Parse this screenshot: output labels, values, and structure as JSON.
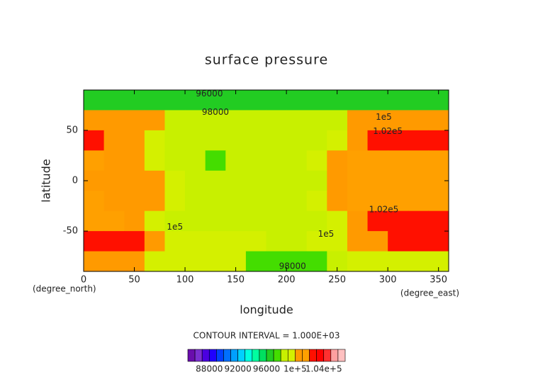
{
  "chart_data": {
    "type": "contour",
    "title": "surface pressure",
    "x_label": "longitude",
    "y_label": "latitude",
    "x_unit": "(degree_east)",
    "y_unit": "(degree_north)",
    "interval_note": "CONTOUR INTERVAL = 1.000E+03",
    "xlim": [
      0,
      360
    ],
    "ylim": [
      -90,
      90
    ],
    "xticks": [
      0,
      50,
      100,
      150,
      200,
      250,
      300,
      350
    ],
    "yticks": [
      -50,
      0,
      50
    ],
    "x": [
      10,
      30,
      50,
      70,
      90,
      110,
      130,
      150,
      170,
      190,
      210,
      230,
      250,
      270,
      290,
      310,
      330,
      350
    ],
    "y": [
      80,
      60,
      40,
      20,
      0,
      -20,
      -40,
      -60,
      -80
    ],
    "z": [
      [
        96500,
        96500,
        96500,
        96500,
        96500,
        96500,
        96500,
        96500,
        96300,
        96000,
        96000,
        96300,
        96500,
        96500,
        96500,
        96500,
        96500,
        96500
      ],
      [
        100500,
        100500,
        100500,
        100500,
        98800,
        98800,
        98800,
        98800,
        98800,
        98800,
        98800,
        98800,
        98800,
        100500,
        100500,
        100500,
        100500,
        100500
      ],
      [
        102500,
        100800,
        100500,
        99000,
        98800,
        98800,
        98800,
        98800,
        98800,
        98800,
        98800,
        98800,
        99500,
        100800,
        102500,
        102500,
        102500,
        102300
      ],
      [
        101000,
        100800,
        100800,
        99300,
        98800,
        98800,
        97500,
        98800,
        98800,
        98800,
        98800,
        99200,
        100500,
        101000,
        101000,
        101000,
        101000,
        101000
      ],
      [
        100800,
        100500,
        100800,
        100500,
        99000,
        98800,
        98800,
        98800,
        98800,
        98800,
        98800,
        98800,
        100500,
        101000,
        101000,
        101000,
        101000,
        101000
      ],
      [
        101000,
        100800,
        100800,
        100800,
        99500,
        98800,
        98800,
        98800,
        98800,
        98800,
        98800,
        99500,
        100600,
        101200,
        101200,
        101200,
        101200,
        101200
      ],
      [
        101500,
        101000,
        100500,
        99500,
        98900,
        98900,
        98900,
        98900,
        98900,
        98900,
        98900,
        98900,
        99500,
        100800,
        102300,
        102800,
        102800,
        102800
      ],
      [
        102800,
        102800,
        102300,
        100500,
        99200,
        99000,
        99000,
        99000,
        99000,
        98500,
        98500,
        99000,
        99800,
        100800,
        100800,
        102500,
        102500,
        102500
      ],
      [
        100500,
        100500,
        100500,
        99500,
        99000,
        99000,
        99000,
        99000,
        97500,
        97200,
        97200,
        97200,
        98500,
        99500,
        99500,
        99500,
        99500,
        99500
      ]
    ],
    "levels": [
      85000,
      86000,
      87000,
      88000,
      89000,
      90000,
      91000,
      92000,
      93000,
      94000,
      95000,
      96000,
      97000,
      98000,
      99000,
      100000,
      101000,
      102000,
      103000,
      104000,
      105000,
      106000,
      107000
    ],
    "colors": [
      "#6a0dad",
      "#7b2fd0",
      "#4b00e0",
      "#2000ff",
      "#0040ff",
      "#0070ff",
      "#00a0ff",
      "#00d0ff",
      "#00ffe0",
      "#00ffa0",
      "#00e060",
      "#22cc22",
      "#44dd00",
      "#c8f000",
      "#d4f000",
      "#ff9a00",
      "#ffa000",
      "#ff1000",
      "#ff0000",
      "#ff3030",
      "#ffa0a0",
      "#ffc0c0"
    ],
    "colorbar_ticks": [
      88000,
      92000,
      96000,
      {
        "value": 100000,
        "label": "1e+5"
      },
      {
        "value": 104000,
        "label": "1.04e+5"
      }
    ],
    "contour_labels": [
      {
        "text": "96000",
        "x": 124,
        "y": 86
      },
      {
        "text": "98000",
        "x": 130,
        "y": 68
      },
      {
        "text": "1e5",
        "x": 296,
        "y": 63
      },
      {
        "text": "1.02e5",
        "x": 300,
        "y": 49
      },
      {
        "text": "1.02e5",
        "x": 296,
        "y": -29
      },
      {
        "text": "1e5",
        "x": 90,
        "y": -46
      },
      {
        "text": "1e5",
        "x": 239,
        "y": -53
      },
      {
        "text": "98000",
        "x": 206,
        "y": -85
      }
    ]
  }
}
